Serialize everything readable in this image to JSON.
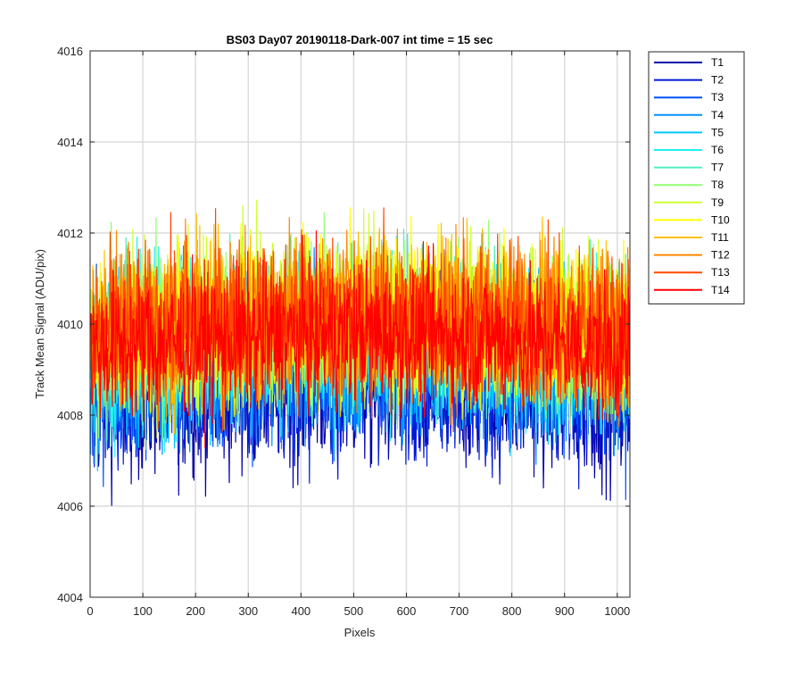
{
  "chart_data": {
    "type": "line",
    "title": "BS03 Day07 20190118-Dark-007 int time = 15 sec",
    "xlabel": "Pixels",
    "ylabel": "Track Mean Signal (ADU/pix)",
    "xlim": [
      0,
      1024
    ],
    "ylim": [
      4004,
      4016
    ],
    "xticks": [
      0,
      100,
      200,
      300,
      400,
      500,
      600,
      700,
      800,
      900,
      1000
    ],
    "yticks": [
      4004,
      4006,
      4008,
      4010,
      4012,
      4014,
      4016
    ],
    "grid": true,
    "legend_position": "outside-top-right",
    "n_points_per_series": 1024,
    "series": [
      {
        "name": "T1",
        "color": "#0000a8",
        "mean": 4008.3,
        "spread": 1.6
      },
      {
        "name": "T2",
        "color": "#0018d8",
        "mean": 4008.5,
        "spread": 1.6
      },
      {
        "name": "T3",
        "color": "#0050ff",
        "mean": 4008.8,
        "spread": 1.6
      },
      {
        "name": "T4",
        "color": "#0090ff",
        "mean": 4009.0,
        "spread": 1.6
      },
      {
        "name": "T5",
        "color": "#00c8ff",
        "mean": 4009.2,
        "spread": 1.6
      },
      {
        "name": "T6",
        "color": "#20f0f0",
        "mean": 4009.4,
        "spread": 1.6
      },
      {
        "name": "T7",
        "color": "#50f0c0",
        "mean": 4009.6,
        "spread": 1.6
      },
      {
        "name": "T8",
        "color": "#90ff70",
        "mean": 4009.7,
        "spread": 1.6
      },
      {
        "name": "T9",
        "color": "#d0ff30",
        "mean": 4009.8,
        "spread": 1.6
      },
      {
        "name": "T10",
        "color": "#ffff00",
        "mean": 4009.8,
        "spread": 1.6
      },
      {
        "name": "T11",
        "color": "#ffc000",
        "mean": 4009.8,
        "spread": 1.6
      },
      {
        "name": "T12",
        "color": "#ff8800",
        "mean": 4009.9,
        "spread": 1.6
      },
      {
        "name": "T13",
        "color": "#ff4800",
        "mean": 4009.8,
        "spread": 1.6
      },
      {
        "name": "T14",
        "color": "#ff0000",
        "mean": 4009.4,
        "spread": 1.4
      }
    ]
  }
}
